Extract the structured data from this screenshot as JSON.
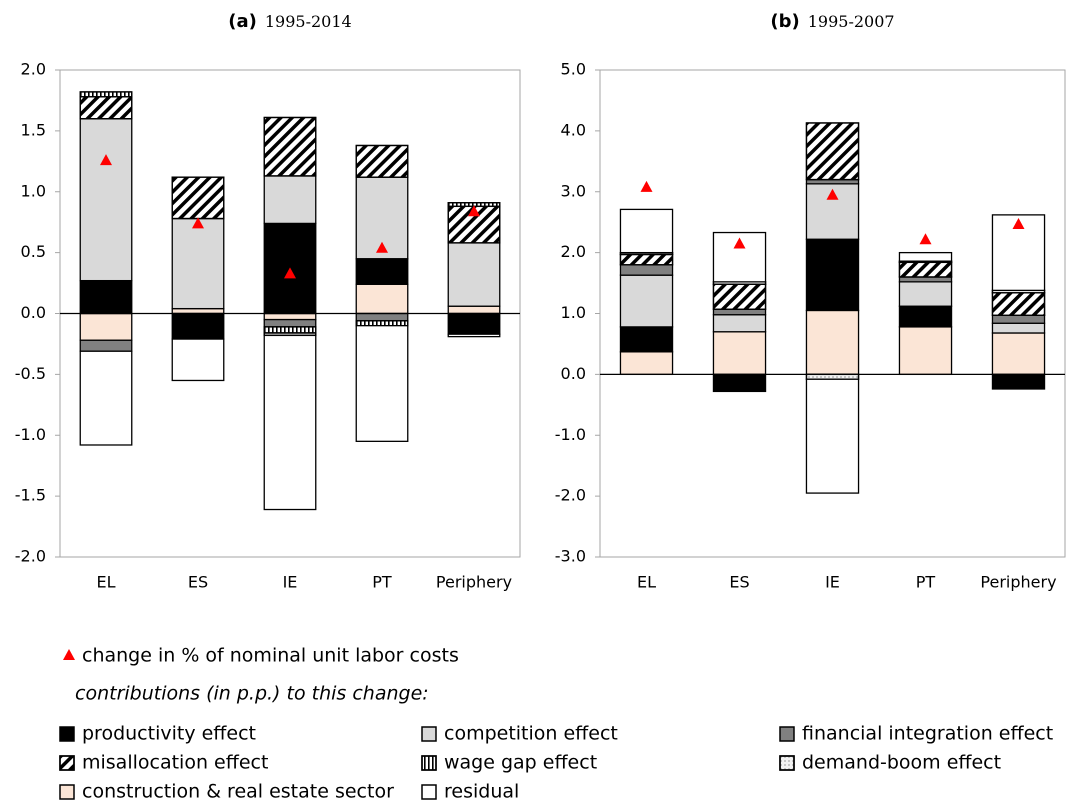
{
  "chart_data": [
    {
      "type": "stacked-bar",
      "panel": "(a)",
      "title": "1995-2014",
      "categories": [
        "EL",
        "ES",
        "IE",
        "PT",
        "Periphery"
      ],
      "ylim": [
        -2.0,
        2.0
      ],
      "yticks": [
        {
          "value": -2.0,
          "label": "-2.0"
        },
        {
          "value": -1.5,
          "label": "-1.5"
        },
        {
          "value": -1.0,
          "label": "-1.0"
        },
        {
          "value": -0.5,
          "label": "-0.5"
        },
        {
          "value": 0.0,
          "label": "0.0"
        },
        0.5,
        {
          "value": 1.0,
          "label": "1.0"
        },
        1.5,
        {
          "value": 2.0,
          "label": "2.0"
        }
      ],
      "series": [
        {
          "name": "construction & real estate sector",
          "color": "#fbe5d6",
          "pattern": "solid",
          "values": [
            -0.22,
            0.04,
            -0.05,
            0.24,
            0.06
          ]
        },
        {
          "name": "productivity effect",
          "color": "#000000",
          "pattern": "solid",
          "values": [
            0.27,
            -0.21,
            0.74,
            0.21,
            -0.17
          ]
        },
        {
          "name": "competition effect",
          "color": "#d9d9d9",
          "pattern": "solid",
          "values": [
            1.33,
            0.74,
            0.39,
            0.67,
            0.52
          ]
        },
        {
          "name": "financial integration effect",
          "color": "#808080",
          "pattern": "solid",
          "values": [
            -0.09,
            0,
            -0.06,
            -0.06,
            0
          ]
        },
        {
          "name": "misallocation effect",
          "color": "#ffffff",
          "pattern": "diagonal",
          "values": [
            0.18,
            0.34,
            0.48,
            0.26,
            0.3
          ]
        },
        {
          "name": "wage gap effect",
          "color": "#ffffff",
          "pattern": "vertical",
          "values": [
            0.04,
            0,
            -0.05,
            -0.04,
            0.03
          ]
        },
        {
          "name": "demand-boom effect",
          "color": "#f2f2f2",
          "pattern": "dotted",
          "values": [
            0,
            0,
            -0.02,
            0,
            0
          ]
        },
        {
          "name": "residual",
          "color": "#ffffff",
          "pattern": "solid",
          "values": [
            -0.77,
            -0.34,
            -1.43,
            -0.95,
            -0.02
          ]
        }
      ],
      "markers": {
        "name": "change in % of nominal unit labor costs",
        "color": "#ff0000",
        "values": [
          1.26,
          0.74,
          0.33,
          0.54,
          0.84
        ]
      },
      "legend_note": "contributions (in p.p.) to this change:"
    },
    {
      "type": "stacked-bar",
      "panel": "(b)",
      "title": "1995-2007",
      "categories": [
        "EL",
        "ES",
        "IE",
        "PT",
        "Periphery"
      ],
      "ylim": [
        -3.0,
        5.0
      ],
      "yticks": [
        {
          "value": -3.0,
          "label": "-3.0"
        },
        {
          "value": -2.0,
          "label": "-2.0"
        },
        {
          "value": -1.0,
          "label": "-1.0"
        },
        {
          "value": 0.0,
          "label": "0.0"
        },
        {
          "value": 1.0,
          "label": "1.0"
        },
        {
          "value": 2.0,
          "label": "2.0"
        },
        {
          "value": 3.0,
          "label": "3.0"
        },
        {
          "value": 4.0,
          "label": "4.0"
        },
        {
          "value": 5.0,
          "label": "5.0"
        }
      ],
      "series": [
        {
          "color": "#fbe5d6",
          "pattern": "solid",
          "values": [
            0.37,
            0.7,
            1.05,
            0.78,
            0.68
          ]
        },
        {
          "color": "#000000",
          "pattern": "solid",
          "values": [
            0.41,
            -0.28,
            1.17,
            0.34,
            -0.24
          ]
        },
        {
          "color": "#d9d9d9",
          "pattern": "solid",
          "values": [
            0.85,
            0.28,
            0.91,
            0.4,
            0.16
          ]
        },
        {
          "color": "#808080",
          "pattern": "solid",
          "values": [
            0.17,
            0.09,
            0.07,
            0.08,
            0.13
          ]
        },
        {
          "color": "#ffffff",
          "pattern": "diagonal",
          "values": [
            0.17,
            0.41,
            0.93,
            0.24,
            0.37
          ]
        },
        {
          "color": "#ffffff",
          "pattern": "vertical",
          "values": [
            0,
            0,
            0,
            0,
            0
          ]
        },
        {
          "color": "#f2f2f2",
          "pattern": "dotted",
          "values": [
            0.03,
            0.04,
            -0.08,
            0.02,
            0.04
          ]
        },
        {
          "color": "#ffffff",
          "pattern": "solid",
          "values": [
            0.71,
            0.81,
            -1.87,
            0.14,
            1.24
          ]
        }
      ],
      "markers": {
        "color": "#ff0000",
        "values": [
          3.08,
          2.15,
          2.95,
          2.22,
          2.47
        ]
      }
    }
  ]
}
